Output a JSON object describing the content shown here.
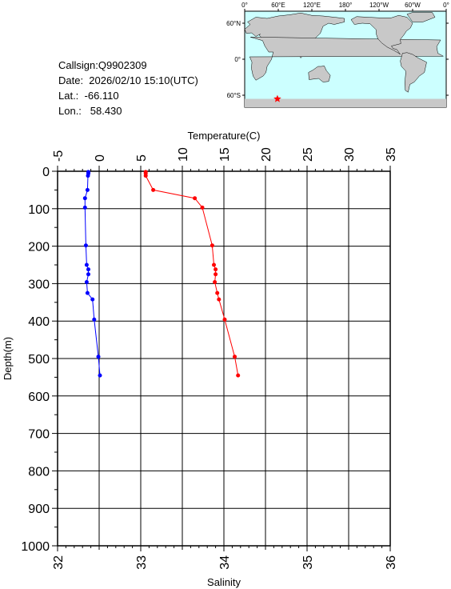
{
  "info": {
    "callsign": "Callsign:Q9902309",
    "date": "Date:  2026/02/10 15:10(UTC)",
    "lat": "Lat.:  -66.110",
    "lon": "Lon.:   58.430"
  },
  "map": {
    "top_labels": [
      "0°",
      "60°E",
      "120°E",
      "180°",
      "120°W",
      "60°W",
      "0°"
    ],
    "side_labels": [
      "60°N",
      "0°",
      "60°S"
    ],
    "ocean_color": "#ccffff",
    "land_color": "#c8c8c8",
    "marker_color": "#ff0000",
    "marker": {
      "lon": 58.43,
      "lat": -66.11
    }
  },
  "chart_data": {
    "type": "line",
    "title": "",
    "top_axis": {
      "label": "Temperature(C)",
      "range": [
        -5,
        35
      ],
      "ticks": [
        "-5",
        "0",
        "5",
        "10",
        "15",
        "20",
        "25",
        "30",
        "35"
      ]
    },
    "bottom_axis": {
      "label": "Salinity",
      "range": [
        32,
        36
      ],
      "ticks": [
        "32",
        "33",
        "34",
        "35",
        "36"
      ]
    },
    "y_axis": {
      "label": "Depth(m)",
      "range": [
        0,
        1000
      ],
      "inverted": true,
      "ticks": [
        "0",
        "100",
        "200",
        "300",
        "400",
        "500",
        "600",
        "700",
        "800",
        "900",
        "1000"
      ]
    },
    "grid": true,
    "series": [
      {
        "axis": "temperature",
        "color": "#0000ff",
        "depth": [
          2,
          6,
          12,
          50,
          72,
          97,
          198,
          250,
          262,
          275,
          296,
          325,
          342,
          396,
          495,
          545
        ],
        "values": [
          -1.3,
          -1.3,
          -1.35,
          -1.4,
          -1.7,
          -1.7,
          -1.6,
          -1.5,
          -1.3,
          -1.3,
          -1.5,
          -1.4,
          -0.8,
          -0.6,
          -0.1,
          0.1
        ]
      },
      {
        "axis": "salinity",
        "color": "#ff0000",
        "depth": [
          2,
          6,
          12,
          50,
          72,
          97,
          198,
          250,
          262,
          275,
          296,
          325,
          342,
          396,
          495,
          545
        ],
        "values": [
          33.06,
          33.06,
          33.06,
          33.15,
          33.65,
          33.74,
          33.86,
          33.88,
          33.9,
          33.9,
          33.89,
          33.92,
          33.94,
          34.01,
          34.13,
          34.17
        ]
      }
    ]
  }
}
